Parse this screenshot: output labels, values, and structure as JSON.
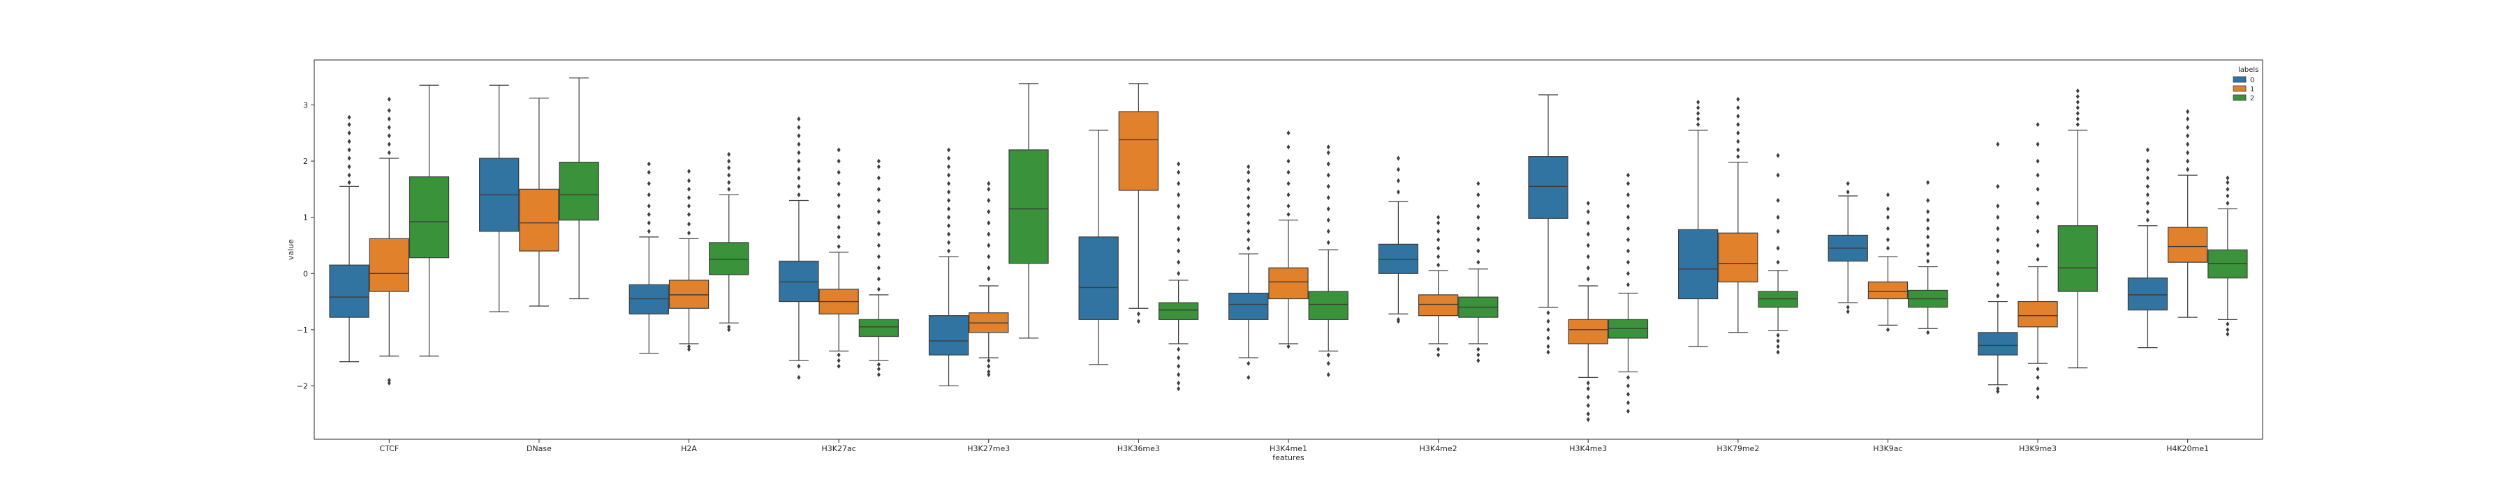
{
  "chart_data": {
    "type": "box",
    "xlabel": "features",
    "ylabel": "value",
    "ylim": [
      -2.95,
      3.8
    ],
    "yticks": [
      -2,
      -1,
      0,
      1,
      2,
      3
    ],
    "legend": {
      "title": "labels",
      "placement": "top-right",
      "entries": [
        "0",
        "1",
        "2"
      ]
    },
    "colors": {
      "0": "#3274a1",
      "1": "#e1812c",
      "2": "#3a923a",
      "line": "#3d3d3d",
      "frame": "#262626"
    },
    "categories": [
      "CTCF",
      "DNase",
      "H2A",
      "H3K27ac",
      "H3K27me3",
      "H3K36me3",
      "H3K4me1",
      "H3K4me2",
      "H3K4me3",
      "H3K79me2",
      "H3K9ac",
      "H3K9me3",
      "H4K20me1"
    ],
    "series": [
      {
        "name": "0",
        "boxes": [
          {
            "whislo": -1.57,
            "q1": -0.78,
            "med": -0.42,
            "q3": 0.15,
            "whishi": 1.55,
            "fliers_low": [],
            "fliers_high": [
              1.62,
              1.75,
              1.9,
              2.05,
              2.2,
              2.35,
              2.5,
              2.65,
              2.78
            ]
          },
          {
            "whislo": -0.68,
            "q1": 0.75,
            "med": 1.4,
            "q3": 2.05,
            "whishi": 3.35,
            "fliers_low": [],
            "fliers_high": []
          },
          {
            "whislo": -1.42,
            "q1": -0.72,
            "med": -0.45,
            "q3": -0.2,
            "whishi": 0.65,
            "fliers_low": [],
            "fliers_high": [
              0.75,
              0.9,
              1.05,
              1.2,
              1.4,
              1.6,
              1.8,
              1.95
            ]
          },
          {
            "whislo": -1.55,
            "q1": -0.5,
            "med": -0.15,
            "q3": 0.22,
            "whishi": 1.3,
            "fliers_low": [
              -1.65,
              -1.85
            ],
            "fliers_high": [
              1.4,
              1.55,
              1.7,
              1.85,
              2.0,
              2.15,
              2.3,
              2.45,
              2.6,
              2.75
            ]
          },
          {
            "whislo": -2.0,
            "q1": -1.45,
            "med": -1.2,
            "q3": -0.75,
            "whishi": 0.3,
            "fliers_low": [],
            "fliers_high": [
              0.4,
              0.55,
              0.7,
              0.85,
              1.0,
              1.15,
              1.3,
              1.45,
              1.6,
              1.75,
              1.9,
              2.05,
              2.2
            ]
          },
          {
            "whislo": -1.62,
            "q1": -0.82,
            "med": -0.25,
            "q3": 0.65,
            "whishi": 2.55,
            "fliers_low": [],
            "fliers_high": []
          },
          {
            "whislo": -1.5,
            "q1": -0.82,
            "med": -0.55,
            "q3": -0.35,
            "whishi": 0.35,
            "fliers_low": [
              -1.6,
              -1.85
            ],
            "fliers_high": [
              0.45,
              0.6,
              0.75,
              0.9,
              1.05,
              1.2,
              1.35,
              1.5,
              1.65,
              1.8,
              1.9
            ]
          },
          {
            "whislo": -0.72,
            "q1": 0.0,
            "med": 0.25,
            "q3": 0.52,
            "whishi": 1.28,
            "fliers_low": [
              -0.82,
              -0.85
            ],
            "fliers_high": [
              1.45,
              1.65,
              1.85,
              2.05
            ]
          },
          {
            "whislo": -0.6,
            "q1": 0.98,
            "med": 1.55,
            "q3": 2.08,
            "whishi": 3.18,
            "fliers_low": [
              -0.7,
              -0.85,
              -1.0,
              -1.15,
              -1.3,
              -1.4
            ],
            "fliers_high": []
          },
          {
            "whislo": -1.3,
            "q1": -0.45,
            "med": 0.08,
            "q3": 0.78,
            "whishi": 2.55,
            "fliers_low": [],
            "fliers_high": [
              2.65,
              2.75,
              2.85,
              2.95,
              3.05
            ]
          },
          {
            "whislo": -0.52,
            "q1": 0.22,
            "med": 0.45,
            "q3": 0.68,
            "whishi": 1.38,
            "fliers_low": [
              -0.6,
              -0.68
            ],
            "fliers_high": [
              1.45,
              1.6
            ]
          },
          {
            "whislo": -1.98,
            "q1": -1.45,
            "med": -1.28,
            "q3": -1.05,
            "whishi": -0.5,
            "fliers_low": [
              -2.05,
              -2.1
            ],
            "fliers_high": [
              -0.4,
              -0.2,
              0.0,
              0.2,
              0.4,
              0.6,
              0.8,
              1.0,
              1.2,
              1.55,
              2.3
            ]
          },
          {
            "whislo": -1.32,
            "q1": -0.65,
            "med": -0.38,
            "q3": -0.08,
            "whishi": 0.85,
            "fliers_low": [],
            "fliers_high": [
              0.95,
              1.1,
              1.25,
              1.4,
              1.55,
              1.7,
              1.85,
              2.0,
              2.2
            ]
          }
        ]
      },
      {
        "name": "1",
        "boxes": [
          {
            "whislo": -1.47,
            "q1": -0.32,
            "med": 0.0,
            "q3": 0.62,
            "whishi": 2.05,
            "fliers_low": [
              -1.9,
              -1.95
            ],
            "fliers_high": [
              2.15,
              2.3,
              2.45,
              2.6,
              2.75,
              2.9,
              3.1
            ]
          },
          {
            "whislo": -0.58,
            "q1": 0.4,
            "med": 0.9,
            "q3": 1.5,
            "whishi": 3.12,
            "fliers_low": [],
            "fliers_high": []
          },
          {
            "whislo": -1.25,
            "q1": -0.62,
            "med": -0.38,
            "q3": -0.12,
            "whishi": 0.62,
            "fliers_low": [
              -1.3,
              -1.35
            ],
            "fliers_high": [
              0.72,
              0.88,
              1.05,
              1.2,
              1.35,
              1.5,
              1.65,
              1.82
            ]
          },
          {
            "whislo": -1.38,
            "q1": -0.72,
            "med": -0.5,
            "q3": -0.28,
            "whishi": 0.38,
            "fliers_low": [
              -1.45,
              -1.55,
              -1.65
            ],
            "fliers_high": [
              0.48,
              0.65,
              0.82,
              1.0,
              1.2,
              1.4,
              1.6,
              1.8,
              2.0,
              2.2
            ]
          },
          {
            "whislo": -1.5,
            "q1": -1.05,
            "med": -0.88,
            "q3": -0.7,
            "whishi": -0.22,
            "fliers_low": [
              -1.55,
              -1.65,
              -1.75,
              -1.8
            ],
            "fliers_high": [
              -0.1,
              0.1,
              0.3,
              0.5,
              0.7,
              0.9,
              1.1,
              1.3,
              1.5,
              1.6
            ]
          },
          {
            "whislo": -0.62,
            "q1": 1.48,
            "med": 2.38,
            "q3": 2.88,
            "whishi": 3.38,
            "fliers_low": [
              -0.72,
              -0.85
            ],
            "fliers_high": []
          },
          {
            "whislo": -1.25,
            "q1": -0.45,
            "med": -0.15,
            "q3": 0.1,
            "whishi": 0.95,
            "fliers_low": [
              -1.3
            ],
            "fliers_high": [
              1.05,
              1.2,
              1.4,
              1.6,
              1.8,
              2.0,
              2.25,
              2.5
            ]
          },
          {
            "whislo": -1.25,
            "q1": -0.75,
            "med": -0.55,
            "q3": -0.38,
            "whishi": 0.05,
            "fliers_low": [
              -1.35,
              -1.45
            ],
            "fliers_high": [
              0.15,
              0.3,
              0.45,
              0.6,
              0.75,
              0.9,
              1.0
            ]
          },
          {
            "whislo": -1.85,
            "q1": -1.25,
            "med": -1.0,
            "q3": -0.82,
            "whishi": -0.22,
            "fliers_low": [
              -1.95,
              -2.05,
              -2.2,
              -2.35,
              -2.5,
              -2.6
            ],
            "fliers_high": [
              -0.1,
              0.1,
              0.3,
              0.5,
              0.7,
              0.9,
              1.1,
              1.25
            ]
          },
          {
            "whislo": -1.05,
            "q1": -0.15,
            "med": 0.18,
            "q3": 0.72,
            "whishi": 1.98,
            "fliers_low": [],
            "fliers_high": [
              2.08,
              2.2,
              2.35,
              2.5,
              2.65,
              2.8,
              2.95,
              3.1
            ]
          },
          {
            "whislo": -0.92,
            "q1": -0.45,
            "med": -0.32,
            "q3": -0.15,
            "whishi": 0.3,
            "fliers_low": [
              -1.0
            ],
            "fliers_high": [
              0.45,
              0.6,
              0.8,
              1.0,
              1.15,
              1.4
            ]
          },
          {
            "whislo": -1.6,
            "q1": -0.95,
            "med": -0.75,
            "q3": -0.5,
            "whishi": 0.12,
            "fliers_low": [
              -1.7,
              -1.85,
              -2.05,
              -2.2
            ],
            "fliers_high": [
              0.25,
              0.5,
              0.75,
              1.0,
              1.25,
              1.5,
              1.75,
              2.0,
              2.3,
              2.65
            ]
          },
          {
            "whislo": -0.78,
            "q1": 0.2,
            "med": 0.48,
            "q3": 0.82,
            "whishi": 1.75,
            "fliers_low": [],
            "fliers_high": [
              1.85,
              2.0,
              2.15,
              2.3,
              2.45,
              2.6,
              2.75,
              2.88
            ]
          }
        ]
      },
      {
        "name": "2",
        "boxes": [
          {
            "whislo": -1.47,
            "q1": 0.28,
            "med": 0.92,
            "q3": 1.72,
            "whishi": 3.35,
            "fliers_low": [],
            "fliers_high": []
          },
          {
            "whislo": -0.45,
            "q1": 0.95,
            "med": 1.4,
            "q3": 1.98,
            "whishi": 3.48,
            "fliers_low": [],
            "fliers_high": []
          },
          {
            "whislo": -0.88,
            "q1": -0.02,
            "med": 0.25,
            "q3": 0.55,
            "whishi": 1.4,
            "fliers_low": [
              -0.95,
              -1.0
            ],
            "fliers_high": [
              1.5,
              1.62,
              1.75,
              1.88,
              2.0,
              2.12
            ]
          },
          {
            "whislo": -1.55,
            "q1": -1.12,
            "med": -0.95,
            "q3": -0.82,
            "whishi": -0.38,
            "fliers_low": [
              -1.62,
              -1.7,
              -1.8
            ],
            "fliers_high": [
              -0.28,
              -0.1,
              0.1,
              0.3,
              0.5,
              0.7,
              0.9,
              1.1,
              1.3,
              1.5,
              1.7,
              1.9,
              2.0
            ]
          },
          {
            "whislo": -1.15,
            "q1": 0.18,
            "med": 1.15,
            "q3": 2.2,
            "whishi": 3.38,
            "fliers_low": [],
            "fliers_high": []
          },
          {
            "whislo": -1.25,
            "q1": -0.82,
            "med": -0.65,
            "q3": -0.52,
            "whishi": -0.12,
            "fliers_low": [
              -1.35,
              -1.5,
              -1.65,
              -1.8,
              -1.95,
              -2.05
            ],
            "fliers_high": [
              0.0,
              0.2,
              0.4,
              0.6,
              0.8,
              1.0,
              1.2,
              1.4,
              1.6,
              1.8,
              1.95
            ]
          },
          {
            "whislo": -1.38,
            "q1": -0.82,
            "med": -0.55,
            "q3": -0.32,
            "whishi": 0.42,
            "fliers_low": [
              -1.45,
              -1.6,
              -1.8
            ],
            "fliers_high": [
              0.55,
              0.75,
              0.95,
              1.15,
              1.35,
              1.55,
              1.75,
              1.95,
              2.15,
              2.25
            ]
          },
          {
            "whislo": -1.25,
            "q1": -0.78,
            "med": -0.6,
            "q3": -0.42,
            "whishi": 0.08,
            "fliers_low": [
              -1.35,
              -1.45,
              -1.55
            ],
            "fliers_high": [
              0.2,
              0.4,
              0.6,
              0.8,
              1.0,
              1.2,
              1.4,
              1.6
            ]
          },
          {
            "whislo": -1.75,
            "q1": -1.15,
            "med": -0.98,
            "q3": -0.82,
            "whishi": -0.35,
            "fliers_low": [
              -1.85,
              -2.0,
              -2.15,
              -2.3,
              -2.45
            ],
            "fliers_high": [
              -0.2,
              0.0,
              0.2,
              0.4,
              0.6,
              0.8,
              1.0,
              1.2,
              1.4,
              1.6,
              1.75
            ]
          },
          {
            "whislo": -1.02,
            "q1": -0.6,
            "med": -0.45,
            "q3": -0.32,
            "whishi": 0.05,
            "fliers_low": [
              -1.1,
              -1.2,
              -1.3,
              -1.4
            ],
            "fliers_high": [
              0.2,
              0.45,
              0.75,
              1.0,
              1.3,
              1.75,
              2.1
            ]
          },
          {
            "whislo": -0.98,
            "q1": -0.6,
            "med": -0.45,
            "q3": -0.3,
            "whishi": 0.12,
            "fliers_low": [
              -1.05
            ],
            "fliers_high": [
              0.22,
              0.35,
              0.5,
              0.65,
              0.8,
              0.95,
              1.1,
              1.3,
              1.62
            ]
          },
          {
            "whislo": -1.68,
            "q1": -0.32,
            "med": 0.1,
            "q3": 0.85,
            "whishi": 2.55,
            "fliers_low": [],
            "fliers_high": [
              2.65,
              2.75,
              2.85,
              2.95,
              3.05,
              3.15,
              3.25
            ]
          },
          {
            "whislo": -0.82,
            "q1": -0.08,
            "med": 0.18,
            "q3": 0.42,
            "whishi": 1.15,
            "fliers_low": [
              -0.9,
              -1.0,
              -1.08
            ],
            "fliers_high": [
              1.25,
              1.38,
              1.5,
              1.62,
              1.7
            ]
          }
        ]
      }
    ]
  }
}
